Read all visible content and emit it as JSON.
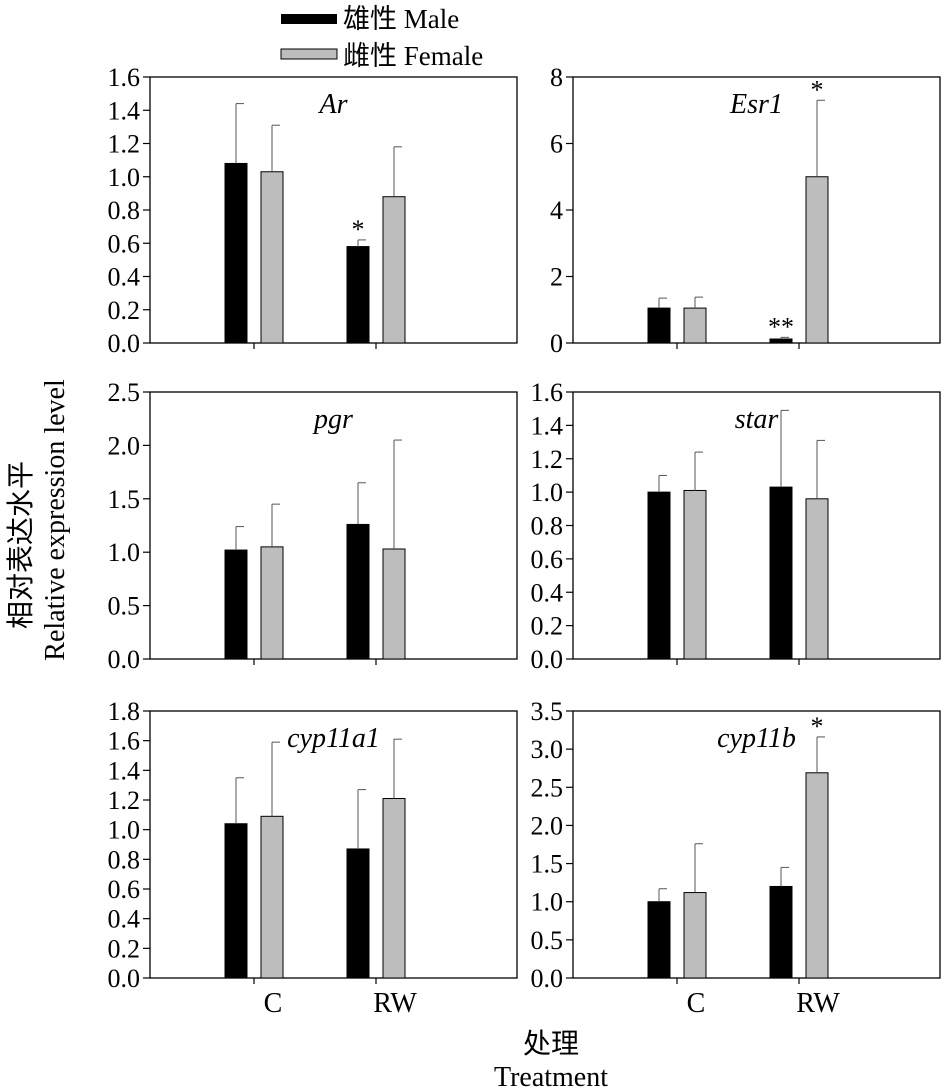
{
  "legend": [
    {
      "label": "雄性 Male",
      "color": "#000000"
    },
    {
      "label": "雌性 Female",
      "color": "#bdbdbd"
    }
  ],
  "ylabel_cn": "相对表达水平",
  "ylabel_en": "Relative expression level",
  "xlabel_cn": "处理",
  "xlabel_en": "Treatment",
  "chart_data": [
    {
      "type": "bar",
      "title": "Ar",
      "categories": [
        "C",
        "RW"
      ],
      "ylim": [
        0,
        1.6
      ],
      "yticks": [
        "0.0",
        "0.2",
        "0.4",
        "0.6",
        "0.8",
        "1.0",
        "1.2",
        "1.4",
        "1.6"
      ],
      "series": [
        {
          "name": "雄性 Male",
          "values": [
            1.08,
            0.58
          ],
          "errors": [
            0.36,
            0.04
          ],
          "sig": [
            "",
            "*"
          ]
        },
        {
          "name": "雌性 Female",
          "values": [
            1.03,
            0.88
          ],
          "errors": [
            0.28,
            0.3
          ],
          "sig": [
            "",
            ""
          ]
        }
      ]
    },
    {
      "type": "bar",
      "title": "Esr1",
      "categories": [
        "C",
        "RW"
      ],
      "ylim": [
        0,
        8
      ],
      "yticks": [
        "0",
        "2",
        "4",
        "6",
        "8"
      ],
      "series": [
        {
          "name": "雄性 Male",
          "values": [
            1.05,
            0.12
          ],
          "errors": [
            0.3,
            0.05
          ],
          "sig": [
            "",
            "**"
          ]
        },
        {
          "name": "雌性 Female",
          "values": [
            1.05,
            5.0
          ],
          "errors": [
            0.33,
            2.3
          ],
          "sig": [
            "",
            "*"
          ]
        }
      ]
    },
    {
      "type": "bar",
      "title": "pgr",
      "categories": [
        "C",
        "RW"
      ],
      "ylim": [
        0,
        2.5
      ],
      "yticks": [
        "0.0",
        "0.5",
        "1.0",
        "1.5",
        "2.0",
        "2.5"
      ],
      "series": [
        {
          "name": "雄性 Male",
          "values": [
            1.02,
            1.26
          ],
          "errors": [
            0.22,
            0.39
          ],
          "sig": [
            "",
            ""
          ]
        },
        {
          "name": "雌性 Female",
          "values": [
            1.05,
            1.03
          ],
          "errors": [
            0.4,
            1.02
          ],
          "sig": [
            "",
            ""
          ]
        }
      ]
    },
    {
      "type": "bar",
      "title": "star",
      "categories": [
        "C",
        "RW"
      ],
      "ylim": [
        0,
        1.6
      ],
      "yticks": [
        "0.0",
        "0.2",
        "0.4",
        "0.6",
        "0.8",
        "1.0",
        "1.2",
        "1.4",
        "1.6"
      ],
      "series": [
        {
          "name": "雄性 Male",
          "values": [
            1.0,
            1.03
          ],
          "errors": [
            0.1,
            0.46
          ],
          "sig": [
            "",
            ""
          ]
        },
        {
          "name": "雌性 Female",
          "values": [
            1.01,
            0.96
          ],
          "errors": [
            0.23,
            0.35
          ],
          "sig": [
            "",
            ""
          ]
        }
      ]
    },
    {
      "type": "bar",
      "title": "cyp11a1",
      "categories": [
        "C",
        "RW"
      ],
      "ylim": [
        0,
        1.8
      ],
      "yticks": [
        "0.0",
        "0.2",
        "0.4",
        "0.6",
        "0.8",
        "1.0",
        "1.2",
        "1.4",
        "1.6",
        "1.8"
      ],
      "series": [
        {
          "name": "雄性 Male",
          "values": [
            1.04,
            0.87
          ],
          "errors": [
            0.31,
            0.4
          ],
          "sig": [
            "",
            ""
          ]
        },
        {
          "name": "雌性 Female",
          "values": [
            1.09,
            1.21
          ],
          "errors": [
            0.5,
            0.4
          ],
          "sig": [
            "",
            ""
          ]
        }
      ]
    },
    {
      "type": "bar",
      "title": "cyp11b",
      "categories": [
        "C",
        "RW"
      ],
      "ylim": [
        0,
        3.5
      ],
      "yticks": [
        "0.0",
        "0.5",
        "1.0",
        "1.5",
        "2.0",
        "2.5",
        "3.0",
        "3.5"
      ],
      "series": [
        {
          "name": "雄性 Male",
          "values": [
            1.0,
            1.2
          ],
          "errors": [
            0.17,
            0.25
          ],
          "sig": [
            "",
            ""
          ]
        },
        {
          "name": "雌性 Female",
          "values": [
            1.12,
            2.69
          ],
          "errors": [
            0.64,
            0.47
          ],
          "sig": [
            "",
            "*"
          ]
        }
      ]
    }
  ]
}
